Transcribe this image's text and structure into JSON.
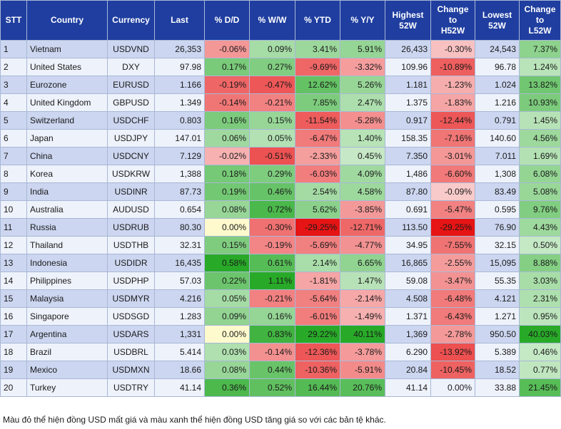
{
  "chart_data": {
    "type": "table",
    "columns": [
      "STT",
      "Country",
      "Currency",
      "Last",
      "% D/D",
      "% W/W",
      "% YTD",
      "% Y/Y",
      "Highest 52W",
      "Change to H52W",
      "Lowest 52W",
      "Change to L52W"
    ],
    "rows": [
      [
        "1",
        "Vietnam",
        "USDVND",
        "26,353",
        "-0.06%",
        "0.09%",
        "3.41%",
        "5.91%",
        "26,433",
        "-0.30%",
        "24,543",
        "7.37%"
      ],
      [
        "2",
        "United States",
        "DXY",
        "97.98",
        "0.17%",
        "0.27%",
        "-9.69%",
        "-3.32%",
        "109.96",
        "-10.89%",
        "96.78",
        "1.24%"
      ],
      [
        "3",
        "Eurozone",
        "EURUSD",
        "1.166",
        "-0.19%",
        "-0.47%",
        "12.62%",
        "5.26%",
        "1.181",
        "-1.23%",
        "1.024",
        "13.82%"
      ],
      [
        "4",
        "United Kingdom",
        "GBPUSD",
        "1.349",
        "-0.14%",
        "-0.21%",
        "7.85%",
        "2.47%",
        "1.375",
        "-1.83%",
        "1.216",
        "10.93%"
      ],
      [
        "5",
        "Switzerland",
        "USDCHF",
        "0.803",
        "0.16%",
        "0.15%",
        "-11.54%",
        "-5.28%",
        "0.917",
        "-12.44%",
        "0.791",
        "1.45%"
      ],
      [
        "6",
        "Japan",
        "USDJPY",
        "147.01",
        "0.06%",
        "0.05%",
        "-6.47%",
        "1.40%",
        "158.35",
        "-7.16%",
        "140.60",
        "4.56%"
      ],
      [
        "7",
        "China",
        "USDCNY",
        "7.129",
        "-0.02%",
        "-0.51%",
        "-2.33%",
        "0.45%",
        "7.350",
        "-3.01%",
        "7.011",
        "1.69%"
      ],
      [
        "8",
        "Korea",
        "USDKRW",
        "1,388",
        "0.18%",
        "0.29%",
        "-6.03%",
        "4.09%",
        "1,486",
        "-6.60%",
        "1,308",
        "6.08%"
      ],
      [
        "9",
        "India",
        "USDINR",
        "87.73",
        "0.19%",
        "0.46%",
        "2.54%",
        "4.58%",
        "87.80",
        "-0.09%",
        "83.49",
        "5.08%"
      ],
      [
        "10",
        "Australia",
        "AUDUSD",
        "0.654",
        "0.08%",
        "0.72%",
        "5.62%",
        "-3.85%",
        "0.691",
        "-5.47%",
        "0.595",
        "9.76%"
      ],
      [
        "11",
        "Russia",
        "USDRUB",
        "80.30",
        "0.00%",
        "-0.30%",
        "-29.25%",
        "-12.71%",
        "113.50",
        "-29.25%",
        "76.90",
        "4.43%"
      ],
      [
        "12",
        "Thailand",
        "USDTHB",
        "32.31",
        "0.15%",
        "-0.19%",
        "-5.69%",
        "-4.77%",
        "34.95",
        "-7.55%",
        "32.15",
        "0.50%"
      ],
      [
        "13",
        "Indonesia",
        "USDIDR",
        "16,435",
        "0.58%",
        "0.61%",
        "2.14%",
        "6.65%",
        "16,865",
        "-2.55%",
        "15,095",
        "8.88%"
      ],
      [
        "14",
        "Philippines",
        "USDPHP",
        "57.03",
        "0.22%",
        "1.11%",
        "-1.81%",
        "1.47%",
        "59.08",
        "-3.47%",
        "55.35",
        "3.03%"
      ],
      [
        "15",
        "Malaysia",
        "USDMYR",
        "4.216",
        "0.05%",
        "-0.21%",
        "-5.64%",
        "-2.14%",
        "4.508",
        "-6.48%",
        "4.121",
        "2.31%"
      ],
      [
        "16",
        "Singapore",
        "USDSGD",
        "1.283",
        "0.09%",
        "0.16%",
        "-6.01%",
        "-1.49%",
        "1.371",
        "-6.43%",
        "1.271",
        "0.95%"
      ],
      [
        "17",
        "Argentina",
        "USDARS",
        "1,331",
        "0.00%",
        "0.83%",
        "29.22%",
        "40.11%",
        "1,369",
        "-2.78%",
        "950.50",
        "40.03%"
      ],
      [
        "18",
        "Brazil",
        "USDBRL",
        "5.414",
        "0.03%",
        "-0.14%",
        "-12.36%",
        "-3.78%",
        "6.290",
        "-13.92%",
        "5.389",
        "0.46%"
      ],
      [
        "19",
        "Mexico",
        "USDMXN",
        "18.66",
        "0.08%",
        "0.44%",
        "-10.36%",
        "-5.91%",
        "20.84",
        "-10.45%",
        "18.52",
        "0.77%"
      ],
      [
        "20",
        "Turkey",
        "USDTRY",
        "41.14",
        "0.36%",
        "0.52%",
        "16.44%",
        "20.76%",
        "41.14",
        "0.00%",
        "33.88",
        "21.45%"
      ]
    ],
    "note": "Màu đỏ thể hiện đồng USD mất giá và màu xanh thể hiện đồng USD tăng giá so với các bản tệ khác."
  }
}
